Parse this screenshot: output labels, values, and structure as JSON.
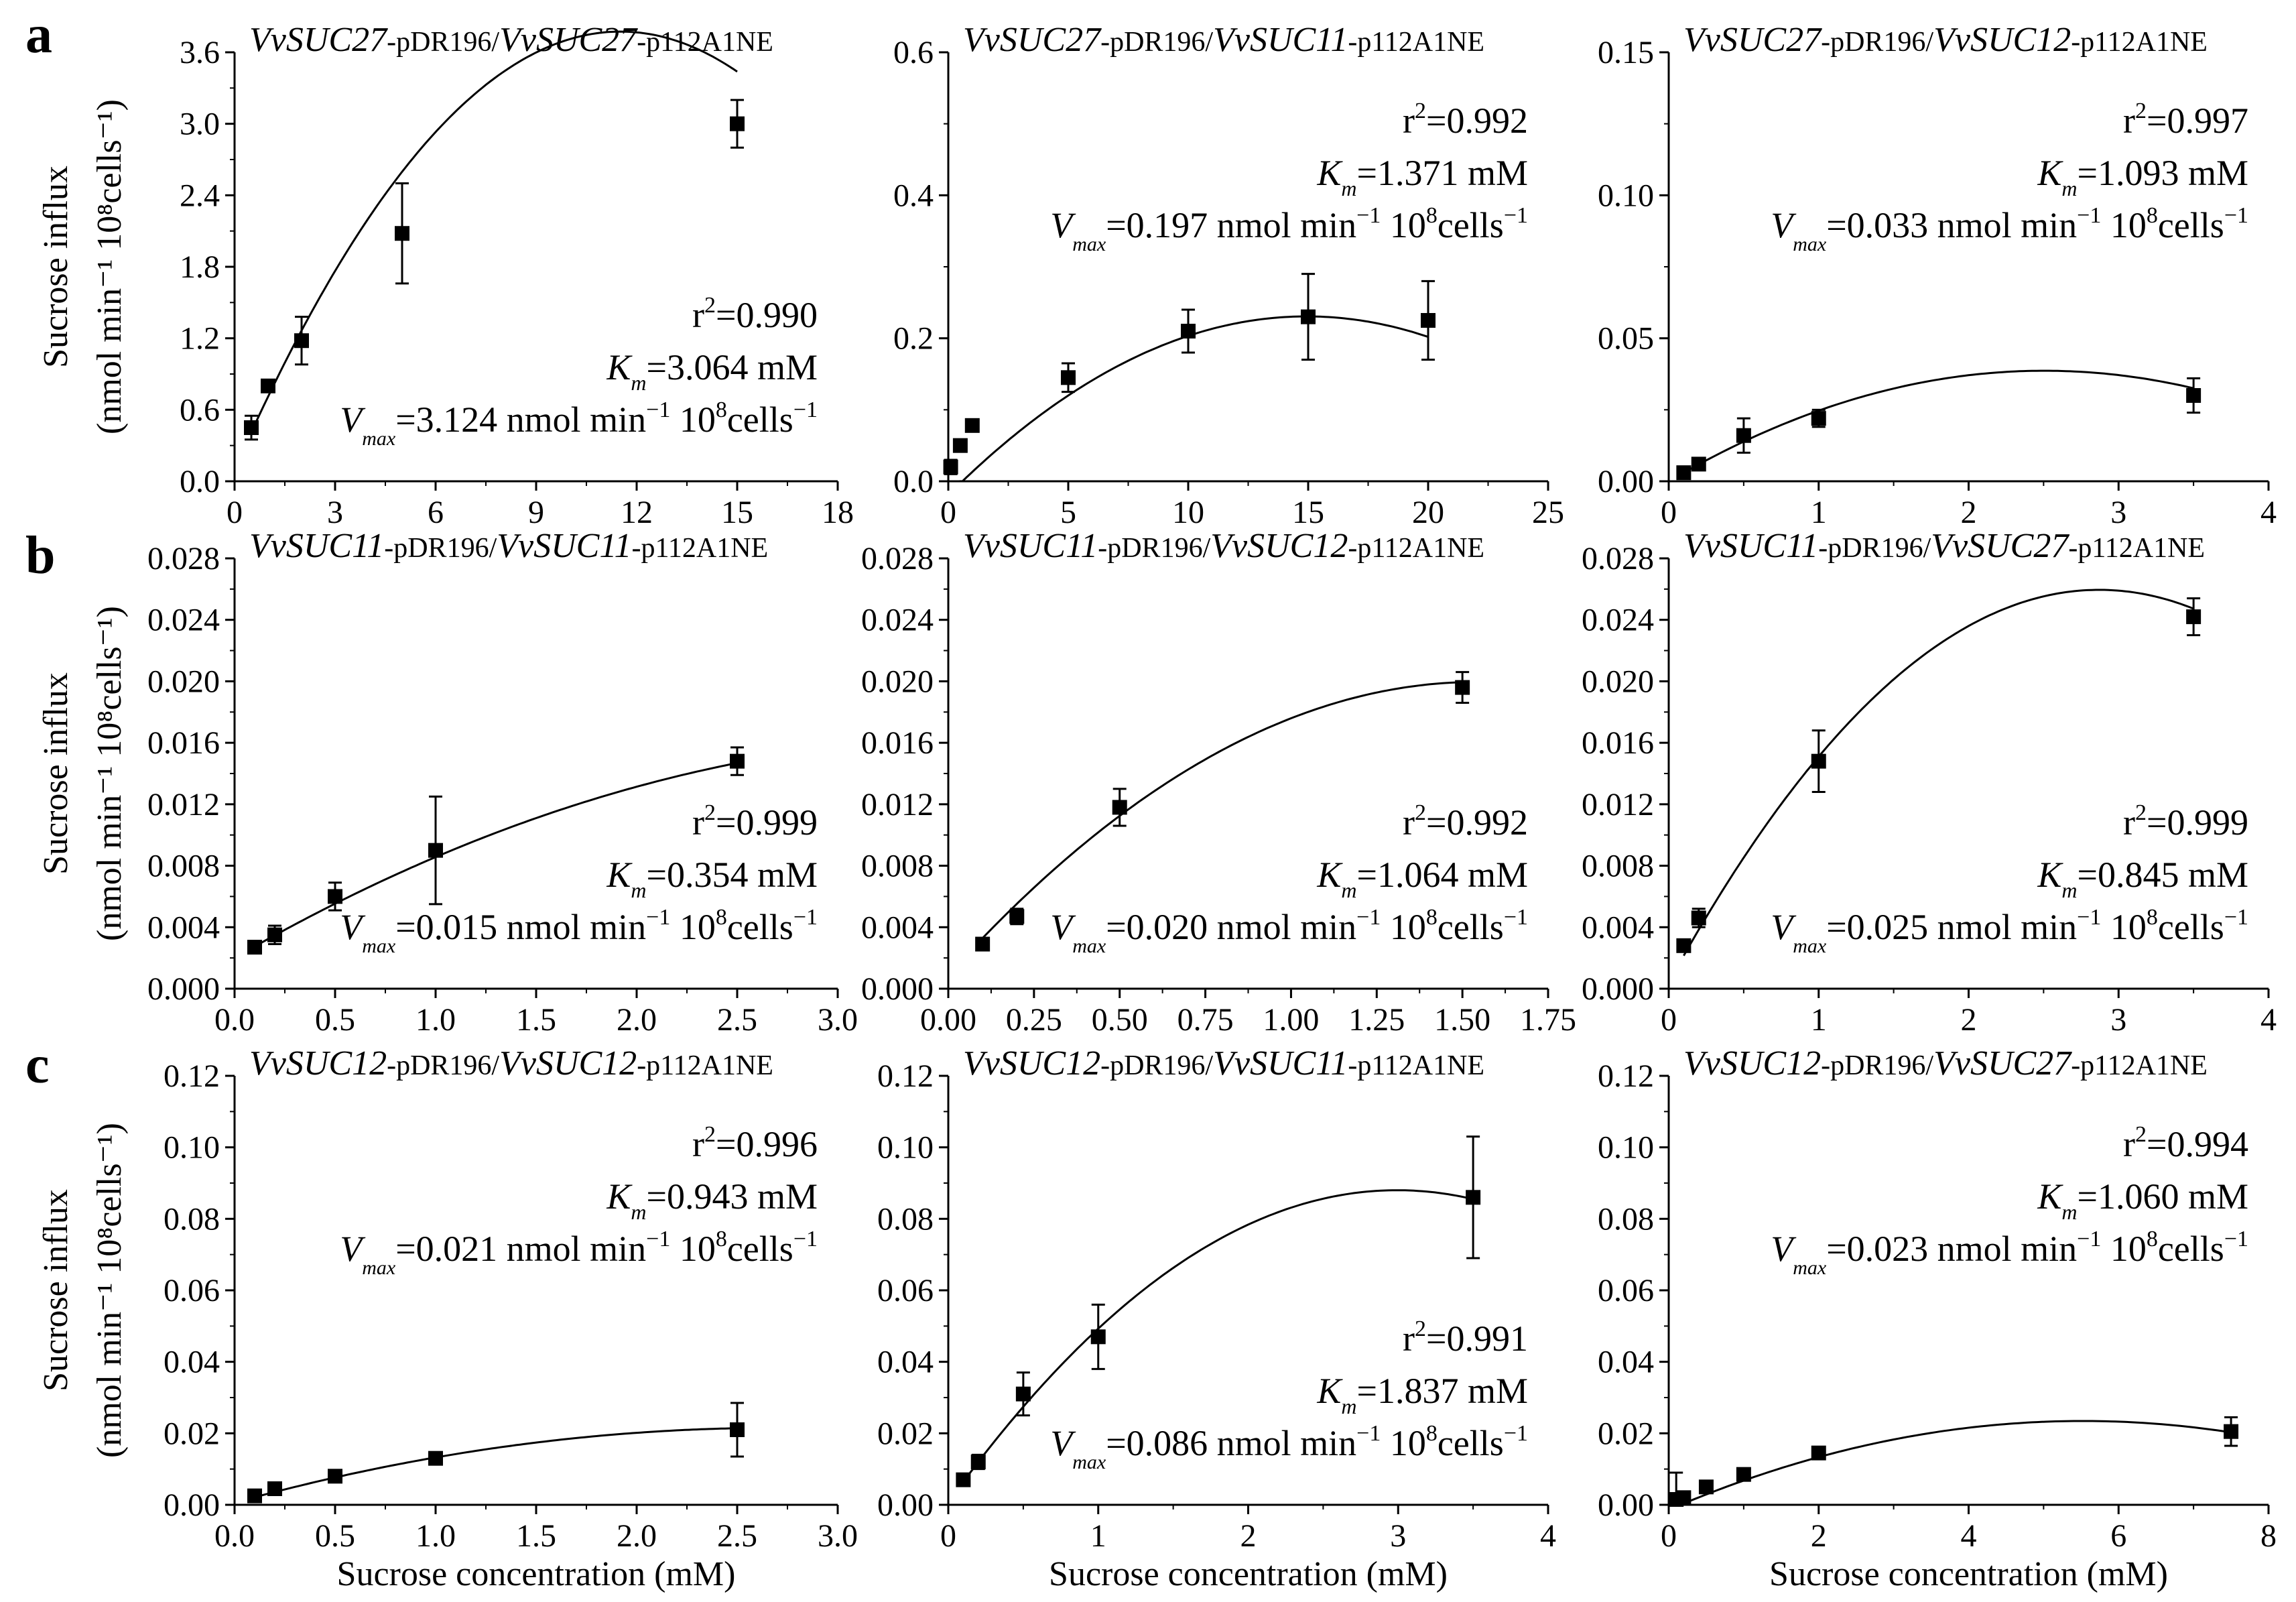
{
  "row_labels": [
    "a",
    "b",
    "c"
  ],
  "ylabel_line1": "Sucrose influx",
  "ylabel_line2": "(nmol min⁻¹ 10⁸cells⁻¹)",
  "xlabel": "Sucrose concentration (mM)",
  "chart_data": [
    {
      "type": "scatter",
      "row": "a",
      "title": "VvSUC27-pDR196/VvSUC27-p112A1NE",
      "title_parts": [
        {
          "t": "VvSUC27",
          "i": true
        },
        {
          "t": "-pDR196/",
          "i": false
        },
        {
          "t": "VvSUC27",
          "i": true
        },
        {
          "t": "-p112A1NE",
          "i": false
        }
      ],
      "xlim": [
        0,
        18
      ],
      "ylim": [
        0,
        3.6
      ],
      "xticks": [
        "0",
        "3",
        "6",
        "9",
        "12",
        "15",
        "18"
      ],
      "xtick_values": [
        0,
        3,
        6,
        9,
        12,
        15,
        18
      ],
      "yticks": [
        "0.0",
        "0.6",
        "1.2",
        "1.8",
        "2.4",
        "3.0",
        "3.6"
      ],
      "ytick_values": [
        0,
        0.6,
        1.2,
        1.8,
        2.4,
        3.0,
        3.6
      ],
      "x": [
        0.5,
        1,
        2,
        5,
        15
      ],
      "y": [
        0.45,
        0.8,
        1.18,
        2.08,
        3.0
      ],
      "err": [
        0.1,
        0.05,
        0.2,
        0.42,
        0.2
      ],
      "fit": [
        -0.0277,
        0.638,
        0.1
      ],
      "r2": "0.990",
      "km": "3.064",
      "vmax": "3.124",
      "anno_pos": "lower-right",
      "xlabel_shown": false
    },
    {
      "type": "scatter",
      "row": "a",
      "title": "VvSUC27-pDR196/VvSUC11-p112A1NE",
      "title_parts": [
        {
          "t": "VvSUC27",
          "i": true
        },
        {
          "t": "-pDR196/",
          "i": false
        },
        {
          "t": "VvSUC11",
          "i": true
        },
        {
          "t": "-p112A1NE",
          "i": false
        }
      ],
      "xlim": [
        0,
        25
      ],
      "ylim": [
        0,
        0.6
      ],
      "xticks": [
        "0",
        "5",
        "10",
        "15",
        "20",
        "25"
      ],
      "xtick_values": [
        0,
        5,
        10,
        15,
        20,
        25
      ],
      "yticks": [
        "0.0",
        "0.2",
        "0.4",
        "0.6"
      ],
      "ytick_values": [
        0,
        0.2,
        0.4,
        0.6
      ],
      "x": [
        0.1,
        0.5,
        1,
        5,
        10,
        15,
        20
      ],
      "y": [
        0.02,
        0.05,
        0.078,
        0.145,
        0.21,
        0.23,
        0.225
      ],
      "err": [
        0.01,
        0.005,
        0.005,
        0.02,
        0.03,
        0.06,
        0.055
      ],
      "fit": [
        -0.00112,
        0.03346,
        -0.0193
      ],
      "r2": "0.992",
      "km": "1.371",
      "vmax": "0.197",
      "anno_pos": "upper-right",
      "xlabel_shown": false
    },
    {
      "type": "scatter",
      "row": "a",
      "title": "VvSUC27-pDR196/VvSUC12-p112A1NE",
      "title_parts": [
        {
          "t": "VvSUC27",
          "i": true
        },
        {
          "t": "-pDR196/",
          "i": false
        },
        {
          "t": "VvSUC12",
          "i": true
        },
        {
          "t": "-p112A1NE",
          "i": false
        }
      ],
      "xlim": [
        0,
        4
      ],
      "ylim": [
        0,
        0.15
      ],
      "xticks": [
        "0",
        "1",
        "2",
        "3",
        "4"
      ],
      "xtick_values": [
        0,
        1,
        2,
        3,
        4
      ],
      "yticks": [
        "0.00",
        "0.05",
        "0.10",
        "0.15"
      ],
      "ytick_values": [
        0,
        0.05,
        0.1,
        0.15
      ],
      "x": [
        0.1,
        0.2,
        0.5,
        1,
        3.5
      ],
      "y": [
        0.003,
        0.006,
        0.016,
        0.022,
        0.03
      ],
      "err": [
        0.001,
        0.001,
        0.006,
        0.003,
        0.006
      ],
      "fit": [
        -0.00617,
        0.0309,
        -4e-05
      ],
      "r2": "0.997",
      "km": "1.093",
      "vmax": "0.033",
      "anno_pos": "upper-right",
      "xlabel_shown": false
    },
    {
      "type": "scatter",
      "row": "b",
      "title": "VvSUC11-pDR196/VvSUC11-p112A1NE",
      "title_parts": [
        {
          "t": "VvSUC11",
          "i": true
        },
        {
          "t": "-pDR196/",
          "i": false
        },
        {
          "t": "VvSUC11",
          "i": true
        },
        {
          "t": "-p112A1NE",
          "i": false
        }
      ],
      "xlim": [
        0,
        3.0
      ],
      "ylim": [
        0,
        0.028
      ],
      "xticks": [
        "0.0",
        "0.5",
        "1.0",
        "1.5",
        "2.0",
        "2.5",
        "3.0"
      ],
      "xtick_values": [
        0,
        0.5,
        1,
        1.5,
        2,
        2.5,
        3
      ],
      "yticks": [
        "0.000",
        "0.004",
        "0.008",
        "0.012",
        "0.016",
        "0.020",
        "0.024",
        "0.028"
      ],
      "ytick_values": [
        0,
        0.004,
        0.008,
        0.012,
        0.016,
        0.02,
        0.024,
        0.028
      ],
      "x": [
        0.1,
        0.2,
        0.5,
        1,
        2.5
      ],
      "y": [
        0.0027,
        0.0035,
        0.006,
        0.009,
        0.0148
      ],
      "err": [
        0.0003,
        0.0006,
        0.0009,
        0.0035,
        0.0009
      ],
      "fit": [
        -0.000993,
        0.007556,
        0.002
      ],
      "r2": "0.999",
      "km": "0.354",
      "vmax": "0.015",
      "anno_pos": "lower-right",
      "xlabel_shown": false
    },
    {
      "type": "scatter",
      "row": "b",
      "title": "VvSUC11-pDR196/VvSUC12-p112A1NE",
      "title_parts": [
        {
          "t": "VvSUC11",
          "i": true
        },
        {
          "t": "-pDR196/",
          "i": false
        },
        {
          "t": "VvSUC12",
          "i": true
        },
        {
          "t": "-p112A1NE",
          "i": false
        }
      ],
      "xlim": [
        0,
        1.75
      ],
      "ylim": [
        0,
        0.028
      ],
      "xticks": [
        "0.00",
        "0.25",
        "0.50",
        "0.75",
        "1.00",
        "1.25",
        "1.50",
        "1.75"
      ],
      "xtick_values": [
        0,
        0.25,
        0.5,
        0.75,
        1,
        1.25,
        1.5,
        1.75
      ],
      "yticks": [
        "0.000",
        "0.004",
        "0.008",
        "0.012",
        "0.016",
        "0.020",
        "0.024",
        "0.028"
      ],
      "ytick_values": [
        0,
        0.004,
        0.008,
        0.012,
        0.016,
        0.02,
        0.024,
        0.028
      ],
      "x": [
        0.1,
        0.2,
        0.5,
        1.5
      ],
      "y": [
        0.0029,
        0.0047,
        0.0118,
        0.0196
      ],
      "err": [
        0.0002,
        0.0005,
        0.0012,
        0.001
      ],
      "fit": [
        -0.007996,
        0.02469,
        0.0009
      ],
      "r2": "0.992",
      "km": "1.064",
      "vmax": "0.020",
      "anno_pos": "lower-right",
      "xlabel_shown": false
    },
    {
      "type": "scatter",
      "row": "b",
      "title": "VvSUC11-pDR196/VvSUC27-p112A1NE",
      "title_parts": [
        {
          "t": "VvSUC11",
          "i": true
        },
        {
          "t": "-pDR196/",
          "i": false
        },
        {
          "t": "VvSUC27",
          "i": true
        },
        {
          "t": "-p112A1NE",
          "i": false
        }
      ],
      "xlim": [
        0,
        4
      ],
      "ylim": [
        0,
        0.028
      ],
      "xticks": [
        "0",
        "1",
        "2",
        "3",
        "4"
      ],
      "xtick_values": [
        0,
        1,
        2,
        3,
        4
      ],
      "yticks": [
        "0.000",
        "0.004",
        "0.008",
        "0.012",
        "0.016",
        "0.020",
        "0.024",
        "0.028"
      ],
      "ytick_values": [
        0,
        0.004,
        0.008,
        0.012,
        0.016,
        0.02,
        0.024,
        0.028
      ],
      "x": [
        0.1,
        0.2,
        1,
        3.5
      ],
      "y": [
        0.0028,
        0.0046,
        0.0148,
        0.0242
      ],
      "err": [
        0.0003,
        0.0006,
        0.002,
        0.0012
      ],
      "fit": [
        -0.0031,
        0.0178,
        0.0004
      ],
      "r2": "0.999",
      "km": "0.845",
      "vmax": "0.025",
      "anno_pos": "lower-right",
      "xlabel_shown": false
    },
    {
      "type": "scatter",
      "row": "c",
      "title": "VvSUC12-pDR196/VvSUC12-p112A1NE",
      "title_parts": [
        {
          "t": "VvSUC12",
          "i": true
        },
        {
          "t": "-pDR196/",
          "i": false
        },
        {
          "t": "VvSUC12",
          "i": true
        },
        {
          "t": "-p112A1NE",
          "i": false
        }
      ],
      "xlim": [
        0,
        3.0
      ],
      "ylim": [
        0,
        0.12
      ],
      "xticks": [
        "0.0",
        "0.5",
        "1.0",
        "1.5",
        "2.0",
        "2.5",
        "3.0"
      ],
      "xtick_values": [
        0,
        0.5,
        1,
        1.5,
        2,
        2.5,
        3
      ],
      "yticks": [
        "0.00",
        "0.02",
        "0.04",
        "0.06",
        "0.08",
        "0.10",
        "0.12"
      ],
      "ytick_values": [
        0,
        0.02,
        0.04,
        0.06,
        0.08,
        0.1,
        0.12
      ],
      "x": [
        0.1,
        0.2,
        0.5,
        1,
        2.5
      ],
      "y": [
        0.0025,
        0.0045,
        0.008,
        0.013,
        0.021
      ],
      "err": [
        0.0005,
        0.0005,
        0.001,
        0.001,
        0.0075
      ],
      "fit": [
        -0.00288,
        0.01553,
        0.0006
      ],
      "r2": "0.996",
      "km": "0.943",
      "vmax": "0.021",
      "anno_pos": "upper-right",
      "xlabel_shown": true
    },
    {
      "type": "scatter",
      "row": "c",
      "title": "VvSUC12-pDR196/VvSUC11-p112A1NE",
      "title_parts": [
        {
          "t": "VvSUC12",
          "i": true
        },
        {
          "t": "-pDR196/",
          "i": false
        },
        {
          "t": "VvSUC11",
          "i": true
        },
        {
          "t": "-p112A1NE",
          "i": false
        }
      ],
      "xlim": [
        0,
        4
      ],
      "ylim": [
        0,
        0.12
      ],
      "xticks": [
        "0",
        "1",
        "2",
        "3",
        "4"
      ],
      "xtick_values": [
        0,
        1,
        2,
        3,
        4
      ],
      "yticks": [
        "0.00",
        "0.02",
        "0.04",
        "0.06",
        "0.08",
        "0.10",
        "0.12"
      ],
      "ytick_values": [
        0,
        0.02,
        0.04,
        0.06,
        0.08,
        0.1,
        0.12
      ],
      "x": [
        0.1,
        0.2,
        0.5,
        1,
        3.5
      ],
      "y": [
        0.007,
        0.012,
        0.031,
        0.047,
        0.086
      ],
      "err": [
        0.001,
        0.002,
        0.006,
        0.009,
        0.017
      ],
      "fit": [
        -0.00974,
        0.05832,
        0.0007
      ],
      "r2": "0.991",
      "km": "1.837",
      "vmax": "0.086",
      "anno_pos": "lower-right",
      "xlabel_shown": true
    },
    {
      "type": "scatter",
      "row": "c",
      "title": "VvSUC12-pDR196/VvSUC27-p112A1NE",
      "title_parts": [
        {
          "t": "VvSUC12",
          "i": true
        },
        {
          "t": "-pDR196/",
          "i": false
        },
        {
          "t": "VvSUC27",
          "i": true
        },
        {
          "t": "-p112A1NE",
          "i": false
        }
      ],
      "xlim": [
        0,
        8
      ],
      "ylim": [
        0,
        0.12
      ],
      "xticks": [
        "0",
        "2",
        "4",
        "6",
        "8"
      ],
      "xtick_values": [
        0,
        2,
        4,
        6,
        8
      ],
      "yticks": [
        "0.00",
        "0.02",
        "0.04",
        "0.06",
        "0.08",
        "0.10",
        "0.12"
      ],
      "ytick_values": [
        0,
        0.02,
        0.04,
        0.06,
        0.08,
        0.1,
        0.12
      ],
      "x": [
        0.1,
        0.2,
        0.5,
        1,
        2,
        7.5
      ],
      "y": [
        0.0015,
        0.002,
        0.005,
        0.0085,
        0.0145,
        0.0205
      ],
      "err": [
        0.0075,
        0.0005,
        0.001,
        0.001,
        0.0015,
        0.004
      ],
      "fit": [
        -0.000815,
        0.009,
        -0.0014
      ],
      "r2": "0.994",
      "km": "1.060",
      "vmax": "0.023",
      "anno_pos": "upper-right",
      "xlabel_shown": true
    }
  ]
}
